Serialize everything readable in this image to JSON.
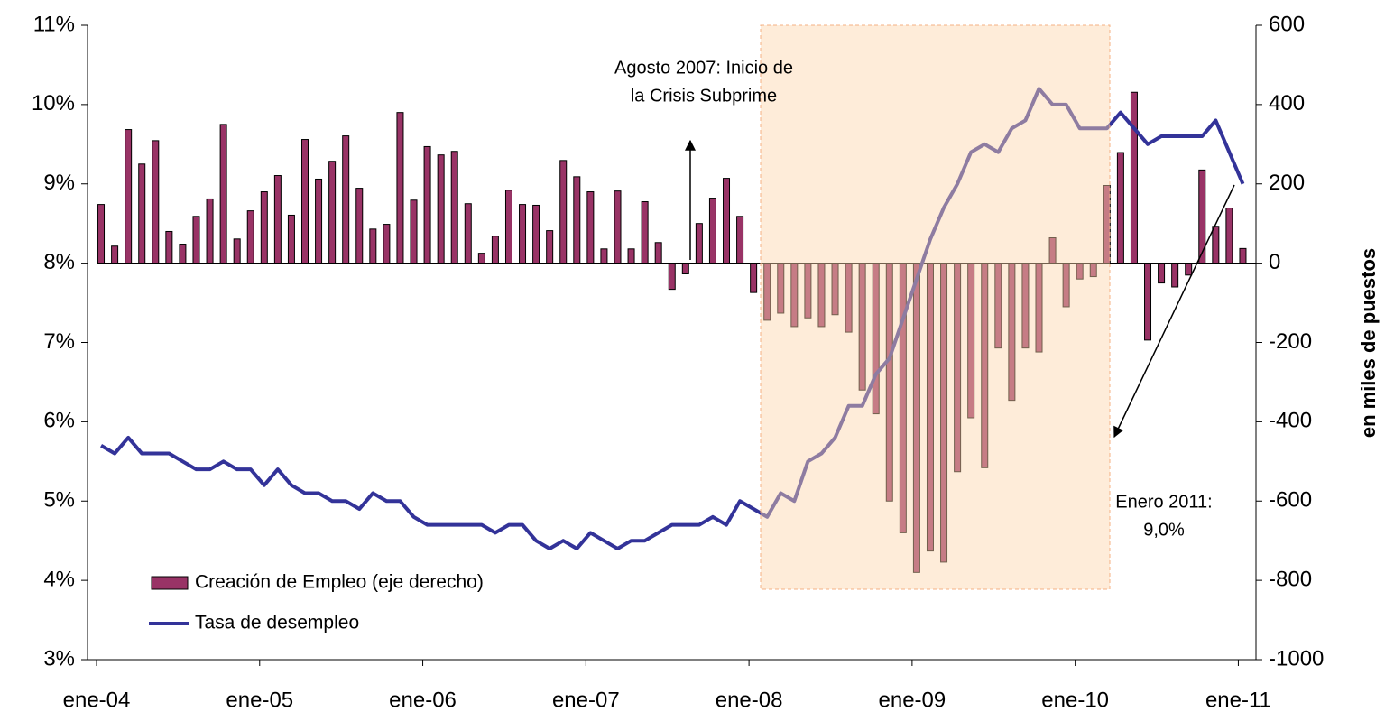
{
  "chart_data": {
    "type": "combo",
    "categories": [
      "ene-04",
      null,
      null,
      null,
      null,
      null,
      null,
      null,
      null,
      null,
      null,
      null,
      "ene-05",
      null,
      null,
      null,
      null,
      null,
      null,
      null,
      null,
      null,
      null,
      null,
      "ene-06",
      null,
      null,
      null,
      null,
      null,
      null,
      null,
      null,
      null,
      null,
      null,
      "ene-07",
      null,
      null,
      null,
      null,
      null,
      null,
      null,
      null,
      null,
      null,
      null,
      "ene-08",
      null,
      null,
      null,
      null,
      null,
      null,
      null,
      null,
      null,
      null,
      null,
      "ene-09",
      null,
      null,
      null,
      null,
      null,
      null,
      null,
      null,
      null,
      null,
      null,
      "ene-10",
      null,
      null,
      null,
      null,
      null,
      null,
      null,
      null,
      null,
      null,
      null,
      "ene-11"
    ],
    "series": [
      {
        "name": "Creación de Empleo (eje derecho)",
        "type": "bar",
        "axis": "y2",
        "color": "#993366",
        "values": [
          148,
          43,
          337,
          250,
          309,
          80,
          48,
          118,
          162,
          350,
          61,
          132,
          180,
          221,
          121,
          312,
          212,
          257,
          321,
          189,
          86,
          98,
          380,
          159,
          294,
          273,
          282,
          150,
          25,
          68,
          184,
          148,
          146,
          82,
          259,
          218,
          180,
          36,
          182,
          36,
          155,
          52,
          -66,
          -27,
          100,
          164,
          214,
          118,
          -74,
          -144,
          -126,
          -160,
          -138,
          -160,
          -130,
          -174,
          -320,
          -380,
          -600,
          -680,
          -780,
          -726,
          -754,
          -526,
          -390,
          -516,
          -214,
          -346,
          -214,
          -224,
          64,
          -110,
          -40,
          -34,
          196,
          279,
          431,
          -194,
          -50,
          -60,
          -30,
          235,
          93,
          139,
          37
        ]
      },
      {
        "name": "Tasa de desempleo",
        "type": "line",
        "color": "#333399",
        "values": [
          5.7,
          5.6,
          5.8,
          5.6,
          5.6,
          5.6,
          5.5,
          5.4,
          5.4,
          5.5,
          5.4,
          5.4,
          5.2,
          5.4,
          5.2,
          5.1,
          5.1,
          5.0,
          5.0,
          4.9,
          5.1,
          5.0,
          5.0,
          4.8,
          4.7,
          4.7,
          4.7,
          4.7,
          4.7,
          4.6,
          4.7,
          4.7,
          4.5,
          4.4,
          4.5,
          4.4,
          4.6,
          4.5,
          4.4,
          4.5,
          4.5,
          4.6,
          4.7,
          4.7,
          4.7,
          4.8,
          4.7,
          5.0,
          4.9,
          4.8,
          5.1,
          5.0,
          5.5,
          5.6,
          5.8,
          6.2,
          6.2,
          6.6,
          6.8,
          7.3,
          7.8,
          8.3,
          8.7,
          9.0,
          9.4,
          9.5,
          9.4,
          9.7,
          9.8,
          10.2,
          10.0,
          10.0,
          9.7,
          9.7,
          9.7,
          9.9,
          9.7,
          9.5,
          9.6,
          9.6,
          9.6,
          9.6,
          9.8,
          9.4,
          9.0
        ]
      }
    ],
    "ylim": [
      3,
      11
    ],
    "yticks": [
      {
        "value": 3,
        "label": "3%"
      },
      {
        "value": 4,
        "label": "4%"
      },
      {
        "value": 5,
        "label": "5%"
      },
      {
        "value": 6,
        "label": "6%"
      },
      {
        "value": 7,
        "label": "7%"
      },
      {
        "value": 8,
        "label": "8%"
      },
      {
        "value": 9,
        "label": "9%"
      },
      {
        "value": 10,
        "label": "10%"
      },
      {
        "value": 11,
        "label": "11%"
      }
    ],
    "y2lim": [
      -1000,
      600
    ],
    "y2ticks": [
      -1000,
      -800,
      -600,
      -400,
      -200,
      0,
      200,
      400,
      600
    ],
    "y2label": "en miles de puestos",
    "annotations": [
      {
        "text": [
          "Agosto 2007: Inicio de",
          "la Crisis Subprime"
        ]
      },
      {
        "text": [
          "Enero 2011:",
          "9,0%"
        ]
      }
    ],
    "legend": "lower left"
  }
}
